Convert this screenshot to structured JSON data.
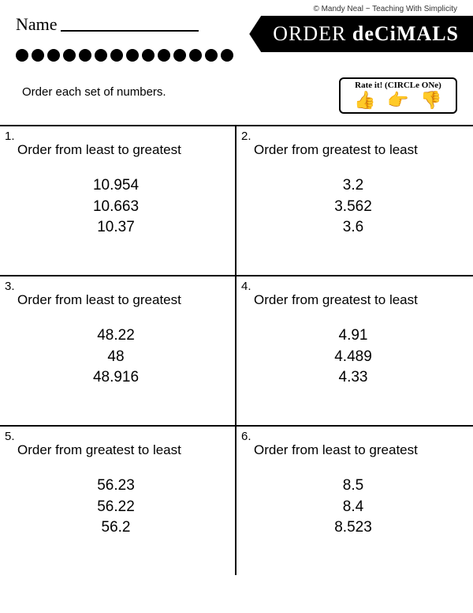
{
  "copyright": "© Mandy Neal ~ Teaching With Simplicity",
  "name_label": "Name",
  "title_thin": "ORDER",
  "title_bold": "deCiMALS",
  "instruction": "Order each set of numbers.",
  "rate_title": "Rate it! (CIRCLe ONe)",
  "thumbs": {
    "up": "👍",
    "side": "👉",
    "down": "👎"
  },
  "dot_count": 14,
  "questions": [
    {
      "num": "1.",
      "prompt": "Order from least to greatest",
      "values": [
        "10.954",
        "10.663",
        "10.37"
      ]
    },
    {
      "num": "2.",
      "prompt": "Order from greatest to least",
      "values": [
        "3.2",
        "3.562",
        "3.6"
      ]
    },
    {
      "num": "3.",
      "prompt": "Order from least to greatest",
      "values": [
        "48.22",
        "48",
        "48.916"
      ]
    },
    {
      "num": "4.",
      "prompt": "Order from greatest to least",
      "values": [
        "4.91",
        "4.489",
        "4.33"
      ]
    },
    {
      "num": "5.",
      "prompt": "Order from greatest to least",
      "values": [
        "56.23",
        "56.22",
        "56.2"
      ]
    },
    {
      "num": "6.",
      "prompt": "Order from least to greatest",
      "values": [
        "8.5",
        "8.4",
        "8.523"
      ]
    }
  ]
}
